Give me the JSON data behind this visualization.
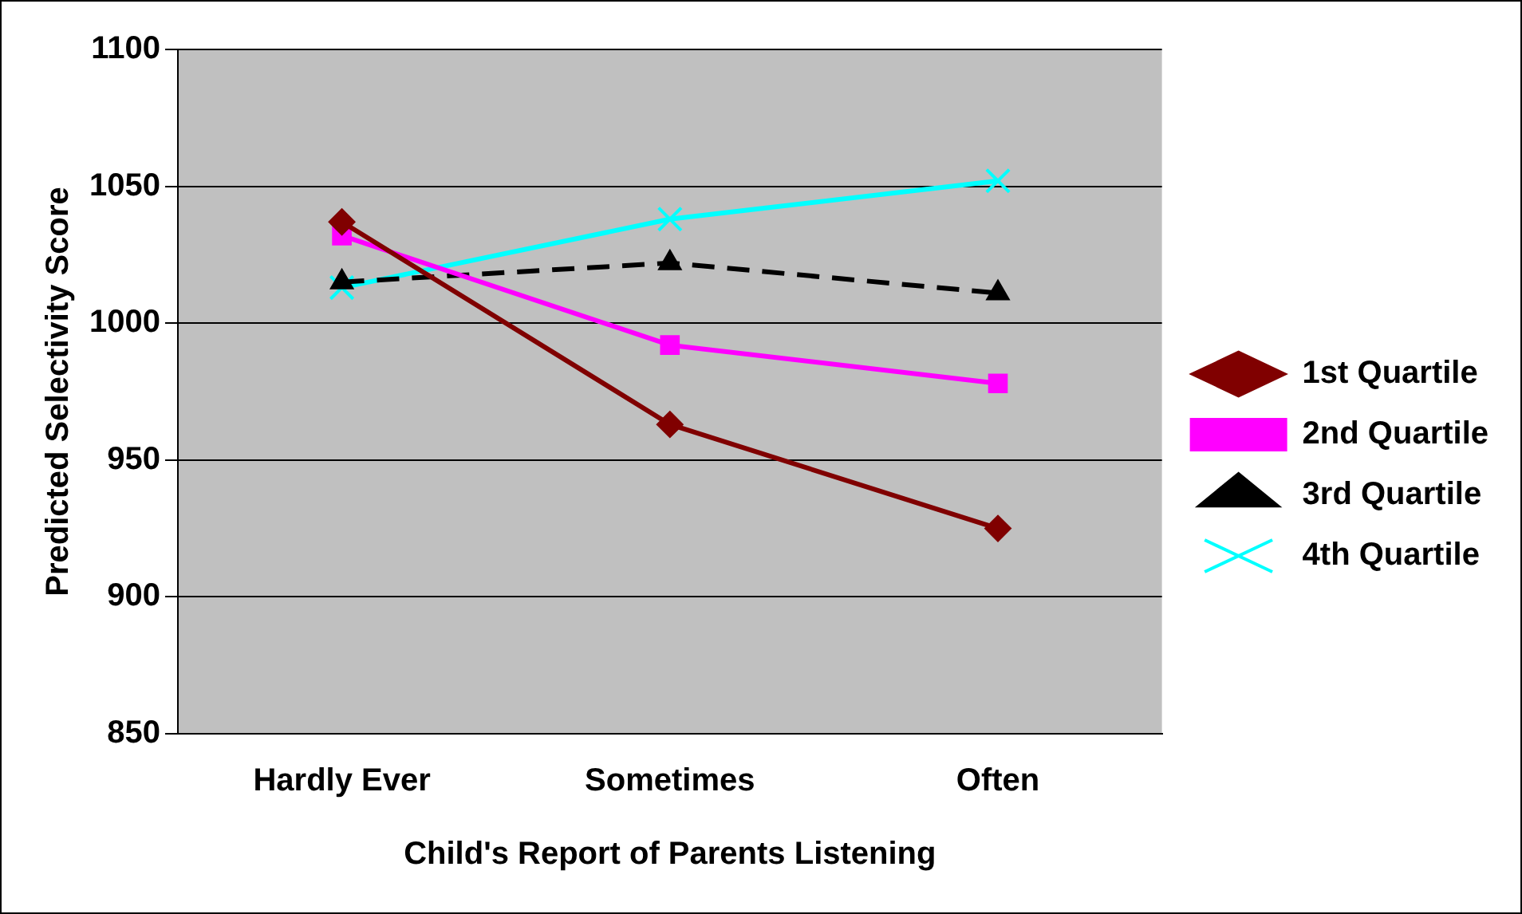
{
  "chart_data": {
    "type": "line",
    "xlabel": "Child's Report of Parents Listening",
    "ylabel": "Predicted Selectivity Score",
    "categories": [
      "Hardly Ever",
      "Sometimes",
      "Often"
    ],
    "series": [
      {
        "name": "1st Quartile",
        "color": "#800000",
        "values": [
          1037,
          963,
          925
        ],
        "marker": "diamond",
        "line_style": "solid"
      },
      {
        "name": "2nd Quartile",
        "color": "#ff00ff",
        "values": [
          1032,
          992,
          978
        ],
        "marker": "square",
        "line_style": "solid"
      },
      {
        "name": "3rd Quartile",
        "color": "#000000",
        "values": [
          1015,
          1022,
          1011
        ],
        "marker": "triangle",
        "line_style": "dashed"
      },
      {
        "name": "4th Quartile",
        "color": "#00ffff",
        "values": [
          1013,
          1038,
          1052
        ],
        "marker": "cross",
        "line_style": "solid"
      }
    ],
    "ylim": [
      850,
      1100
    ],
    "yticks": [
      850,
      900,
      950,
      1000,
      1050,
      1100
    ],
    "grid": "y",
    "legend": "right"
  }
}
